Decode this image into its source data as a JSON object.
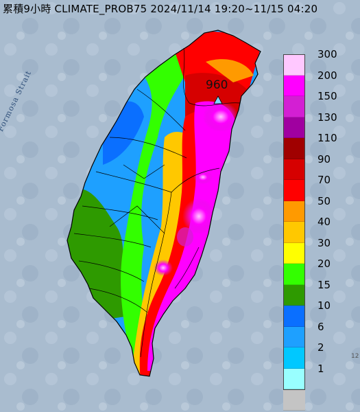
{
  "title": "累積9小時 CLIMATE_PROB75 2024/11/14 19:20~11/15 04:20",
  "strait_label": "Formosa Strait",
  "station_label": "960",
  "corner_text": "12",
  "legend": {
    "labels": [
      "300",
      "200",
      "150",
      "130",
      "110",
      "90",
      "70",
      "50",
      "40",
      "30",
      "20",
      "15",
      "10",
      "6",
      "2",
      "1",
      ""
    ],
    "colors": [
      "#ffc8ff",
      "#ff00ff",
      "#d31fd3",
      "#a000a0",
      "#a00000",
      "#d60000",
      "#ff0000",
      "#ff9a00",
      "#ffc800",
      "#ffff00",
      "#33ff00",
      "#2e9a00",
      "#0a6fff",
      "#1ea0ff",
      "#00c8ff",
      "#99ffff",
      "#c4c4c4"
    ]
  },
  "colors": {
    "sea": "#a9bccf",
    "map_outline": "#000000",
    "station_marker": "#7fd8ff"
  },
  "icons": [
    "station-triangle-icon"
  ]
}
